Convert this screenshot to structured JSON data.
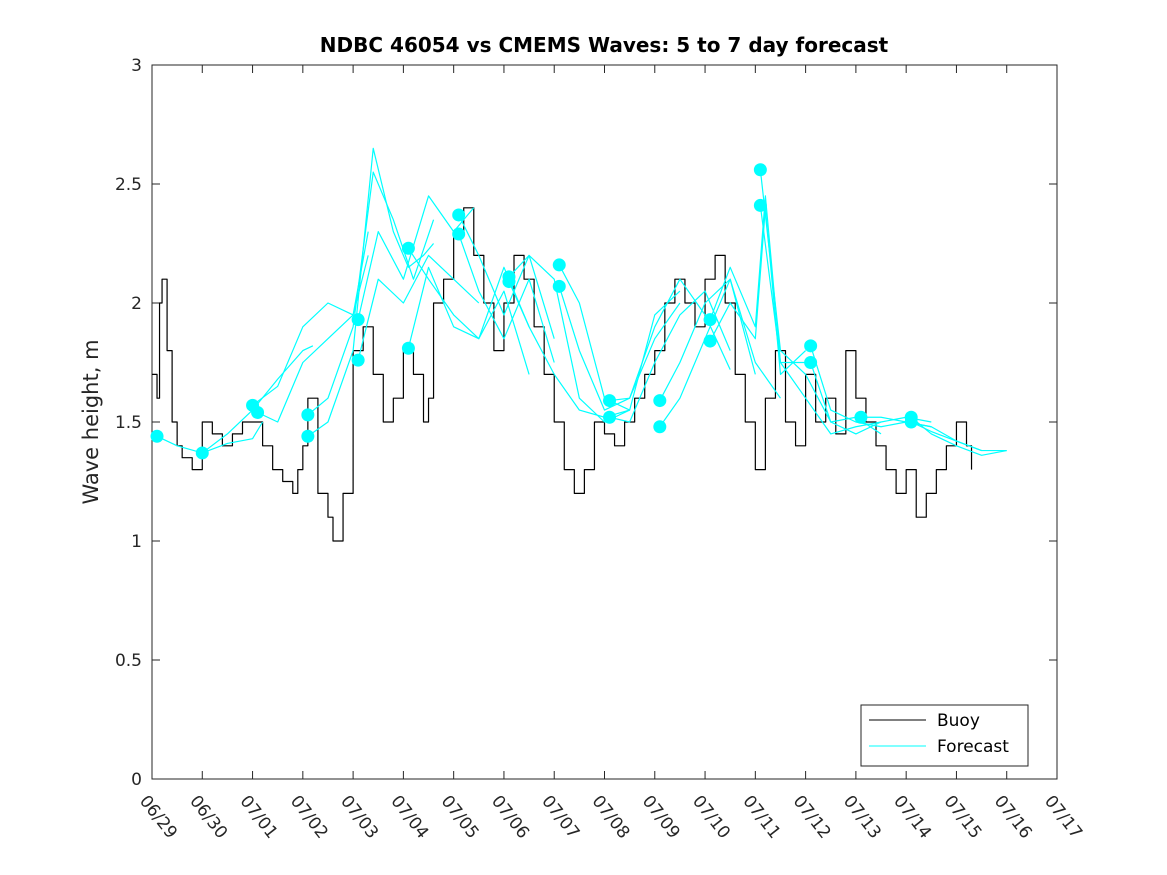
{
  "chart_data": {
    "type": "line",
    "title": "NDBC 46054 vs CMEMS Waves: 5 to 7 day forecast",
    "ylabel": "Wave height, m",
    "xlabel": "",
    "xlim": [
      0,
      18
    ],
    "ylim": [
      0,
      3
    ],
    "x_ticks": [
      0,
      1,
      2,
      3,
      4,
      5,
      6,
      7,
      8,
      9,
      10,
      11,
      12,
      13,
      14,
      15,
      16,
      17,
      18
    ],
    "x_tick_labels": [
      "06/29",
      "06/30",
      "07/01",
      "07/02",
      "07/03",
      "07/04",
      "07/05",
      "07/06",
      "07/07",
      "07/08",
      "07/09",
      "07/10",
      "07/11",
      "07/12",
      "07/13",
      "07/14",
      "07/15",
      "07/16",
      "07/17"
    ],
    "y_ticks": [
      0,
      0.5,
      1,
      1.5,
      2,
      2.5,
      3
    ],
    "y_tick_labels": [
      "0",
      "0.5",
      "1",
      "1.5",
      "2",
      "2.5",
      "3"
    ],
    "grid": false,
    "legend_position": "bottom-right",
    "colors": {
      "buoy": "#000000",
      "forecast": "#00ffff",
      "axes": "#262626"
    },
    "series": [
      {
        "name": "Buoy",
        "style": "step",
        "x": [
          0,
          0.1,
          0.15,
          0.2,
          0.3,
          0.4,
          0.5,
          0.6,
          0.8,
          1.0,
          1.2,
          1.4,
          1.6,
          1.8,
          2.0,
          2.2,
          2.4,
          2.6,
          2.8,
          2.9,
          3.0,
          3.1,
          3.3,
          3.5,
          3.6,
          3.8,
          4.0,
          4.2,
          4.4,
          4.6,
          4.8,
          5.0,
          5.2,
          5.4,
          5.5,
          5.6,
          5.8,
          6.0,
          6.2,
          6.4,
          6.6,
          6.8,
          7.0,
          7.2,
          7.4,
          7.6,
          7.8,
          8.0,
          8.2,
          8.4,
          8.6,
          8.8,
          9.0,
          9.2,
          9.4,
          9.6,
          9.8,
          10.0,
          10.2,
          10.4,
          10.6,
          10.8,
          11.0,
          11.2,
          11.4,
          11.6,
          11.8,
          12.0,
          12.2,
          12.4,
          12.6,
          12.8,
          13.0,
          13.2,
          13.4,
          13.6,
          13.8,
          14.0,
          14.2,
          14.4,
          14.6,
          14.8,
          15.0,
          15.2,
          15.4,
          15.6,
          15.8,
          16.0,
          16.2,
          16.3
        ],
        "y": [
          1.7,
          1.6,
          2.0,
          2.1,
          1.8,
          1.5,
          1.4,
          1.35,
          1.3,
          1.5,
          1.45,
          1.4,
          1.45,
          1.5,
          1.5,
          1.4,
          1.3,
          1.25,
          1.2,
          1.3,
          1.4,
          1.6,
          1.2,
          1.1,
          1.0,
          1.2,
          1.8,
          1.9,
          1.7,
          1.5,
          1.6,
          1.8,
          1.7,
          1.5,
          1.6,
          2.0,
          2.1,
          2.3,
          2.4,
          2.2,
          2.0,
          1.8,
          2.0,
          2.2,
          2.1,
          1.9,
          1.7,
          1.5,
          1.3,
          1.2,
          1.3,
          1.5,
          1.45,
          1.4,
          1.5,
          1.6,
          1.7,
          1.8,
          2.0,
          2.1,
          2.0,
          1.9,
          2.1,
          2.2,
          2.0,
          1.7,
          1.5,
          1.3,
          1.6,
          1.8,
          1.5,
          1.4,
          1.7,
          1.5,
          1.6,
          1.45,
          1.8,
          1.6,
          1.5,
          1.4,
          1.3,
          1.2,
          1.3,
          1.1,
          1.2,
          1.3,
          1.4,
          1.5,
          1.4,
          1.3
        ]
      },
      {
        "name": "Forecast",
        "x": [
          0.1,
          0.5,
          1.0,
          1.5,
          2.0,
          2.2
        ],
        "y": [
          1.44,
          1.4,
          1.37,
          1.41,
          1.43,
          1.5
        ]
      },
      {
        "x": [
          1.0,
          1.5,
          2.0,
          2.5,
          3.0,
          3.2
        ],
        "y": [
          1.37,
          1.45,
          1.55,
          1.68,
          1.8,
          1.82
        ]
      },
      {
        "x": [
          2.0,
          2.5,
          3.0,
          3.5,
          4.0,
          4.3
        ],
        "y": [
          1.57,
          1.65,
          1.9,
          2.0,
          1.95,
          2.2
        ]
      },
      {
        "x": [
          2.1,
          2.5,
          3.0,
          3.5,
          4.0,
          4.3
        ],
        "y": [
          1.54,
          1.5,
          1.75,
          1.85,
          1.95,
          2.3
        ]
      },
      {
        "x": [
          3.1,
          3.5,
          4.0,
          4.4,
          4.8,
          5.1,
          5.4,
          5.6
        ],
        "y": [
          1.44,
          1.5,
          1.8,
          2.65,
          2.3,
          2.15,
          2.2,
          2.25
        ]
      },
      {
        "x": [
          3.1,
          3.5,
          4.0,
          4.4,
          4.8,
          5.2,
          5.6
        ],
        "y": [
          1.53,
          1.6,
          1.9,
          2.55,
          2.35,
          2.1,
          2.35
        ]
      },
      {
        "x": [
          4.1,
          4.5,
          5.0,
          5.5,
          6.0,
          6.4
        ],
        "y": [
          1.93,
          2.3,
          2.1,
          2.45,
          2.3,
          2.4
        ]
      },
      {
        "x": [
          4.1,
          4.5,
          5.0,
          5.5,
          6.0,
          6.5
        ],
        "y": [
          1.76,
          2.1,
          2.0,
          2.2,
          2.1,
          2.0
        ]
      },
      {
        "x": [
          5.1,
          5.5,
          6.0,
          6.5,
          7.0,
          7.5
        ],
        "y": [
          1.81,
          2.15,
          1.9,
          1.85,
          2.15,
          1.9
        ]
      },
      {
        "x": [
          5.1,
          5.5,
          6.0,
          6.5,
          7.0,
          7.5
        ],
        "y": [
          2.23,
          2.1,
          1.95,
          1.85,
          2.05,
          1.7
        ]
      },
      {
        "x": [
          6.1,
          6.5,
          7.0,
          7.5,
          8.0
        ],
        "y": [
          2.37,
          2.2,
          1.95,
          2.2,
          1.85
        ]
      },
      {
        "x": [
          6.1,
          6.5,
          7.0,
          7.5,
          8.0
        ],
        "y": [
          2.29,
          2.05,
          1.85,
          2.1,
          1.75
        ]
      },
      {
        "x": [
          7.1,
          7.5,
          8.0,
          8.5,
          9.0,
          9.5
        ],
        "y": [
          2.11,
          2.2,
          2.1,
          1.6,
          1.5,
          1.55
        ]
      },
      {
        "x": [
          7.1,
          7.5,
          8.0,
          8.5,
          9.0,
          9.5
        ],
        "y": [
          2.09,
          1.9,
          1.7,
          1.55,
          1.52,
          1.55
        ]
      },
      {
        "x": [
          8.1,
          8.5,
          9.0,
          9.5,
          10.0,
          10.5
        ],
        "y": [
          2.16,
          2.0,
          1.6,
          1.55,
          1.95,
          2.05
        ]
      },
      {
        "x": [
          8.1,
          8.5,
          9.0,
          9.5,
          10.0,
          10.5
        ],
        "y": [
          2.07,
          1.8,
          1.55,
          1.6,
          1.85,
          2.0
        ]
      },
      {
        "x": [
          9.1,
          9.5,
          10.0,
          10.5,
          11.0,
          11.5
        ],
        "y": [
          1.59,
          1.6,
          1.9,
          2.1,
          1.95,
          1.72
        ]
      },
      {
        "x": [
          9.1,
          9.5,
          10.0,
          10.5,
          11.0,
          11.5
        ],
        "y": [
          1.52,
          1.5,
          1.75,
          1.95,
          2.05,
          1.8
        ]
      },
      {
        "x": [
          10.1,
          10.5,
          11.0,
          11.5,
          12.0,
          12.5
        ],
        "y": [
          1.59,
          1.75,
          2.0,
          2.1,
          1.75,
          1.6
        ]
      },
      {
        "x": [
          10.1,
          10.5,
          11.0,
          11.5,
          12.0
        ],
        "y": [
          1.48,
          1.6,
          1.85,
          2.1,
          1.7
        ]
      },
      {
        "x": [
          11.1,
          11.5,
          12.0,
          12.2,
          12.5,
          13.0
        ],
        "y": [
          1.93,
          2.15,
          1.9,
          2.45,
          1.75,
          1.75
        ]
      },
      {
        "x": [
          11.1,
          11.5,
          12.0,
          12.2,
          12.5,
          13.0
        ],
        "y": [
          1.84,
          2.0,
          1.85,
          2.4,
          1.7,
          1.8
        ]
      },
      {
        "x": [
          12.1,
          12.5,
          13.0,
          13.5,
          14.0,
          14.5
        ],
        "y": [
          2.56,
          1.8,
          1.7,
          1.5,
          1.52,
          1.45
        ]
      },
      {
        "x": [
          12.1,
          12.5,
          13.0,
          13.5,
          14.0,
          14.5
        ],
        "y": [
          2.41,
          1.75,
          1.6,
          1.45,
          1.48,
          1.5
        ]
      },
      {
        "x": [
          13.1,
          13.5,
          14.0,
          14.5,
          15.0,
          15.5
        ],
        "y": [
          1.82,
          1.55,
          1.5,
          1.48,
          1.5,
          1.48
        ]
      },
      {
        "x": [
          13.1,
          13.5,
          14.0,
          14.5,
          15.0,
          15.5
        ],
        "y": [
          1.75,
          1.5,
          1.45,
          1.5,
          1.52,
          1.5
        ]
      },
      {
        "x": [
          14.1,
          14.5,
          15.0,
          15.5,
          16.0,
          16.5
        ],
        "y": [
          1.52,
          1.52,
          1.5,
          1.48,
          1.42,
          1.38
        ]
      },
      {
        "x": [
          15.1,
          15.5,
          16.0,
          16.5,
          17.0
        ],
        "y": [
          1.52,
          1.45,
          1.4,
          1.36,
          1.38
        ]
      },
      {
        "x": [
          15.1,
          15.5,
          16.0,
          16.5,
          17.0
        ],
        "y": [
          1.5,
          1.46,
          1.42,
          1.38,
          1.38
        ]
      }
    ]
  }
}
